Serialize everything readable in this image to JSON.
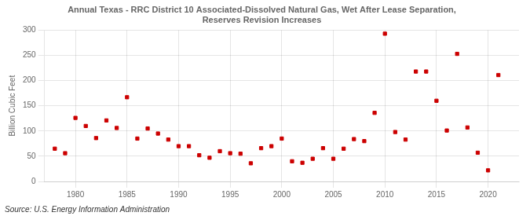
{
  "chart_data": {
    "type": "scatter",
    "title": "Annual Texas - RRC District 10 Associated-Dissolved Natural Gas, Wet After Lease Separation,\nReserves Revision Increases",
    "ylabel": "Billion Cubic Feet",
    "source": "Source: U.S. Energy Information Administration",
    "x": [
      1978,
      1979,
      1980,
      1981,
      1982,
      1983,
      1984,
      1985,
      1986,
      1987,
      1988,
      1989,
      1990,
      1991,
      1992,
      1993,
      1994,
      1995,
      1996,
      1997,
      1998,
      1999,
      2000,
      2001,
      2002,
      2003,
      2004,
      2005,
      2006,
      2007,
      2008,
      2009,
      2010,
      2011,
      2012,
      2013,
      2014,
      2015,
      2016,
      2017,
      2018,
      2019,
      2020,
      2021
    ],
    "values": [
      65,
      56,
      126,
      110,
      86,
      121,
      106,
      167,
      85,
      105,
      95,
      83,
      70,
      70,
      52,
      47,
      60,
      56,
      55,
      36,
      66,
      70,
      85,
      40,
      37,
      45,
      66,
      45,
      65,
      84,
      80,
      136,
      293,
      98,
      83,
      218,
      218,
      160,
      101,
      253,
      107,
      57,
      22,
      211
    ],
    "color": "#cc0000",
    "marker": "square",
    "xlim": [
      1977,
      2023
    ],
    "xticks": [
      1980,
      1985,
      1990,
      1995,
      2000,
      2005,
      2010,
      2015,
      2020
    ],
    "ylim": [
      0,
      300
    ],
    "yticks": [
      0,
      50,
      100,
      150,
      200,
      250,
      300
    ],
    "grid": true
  }
}
